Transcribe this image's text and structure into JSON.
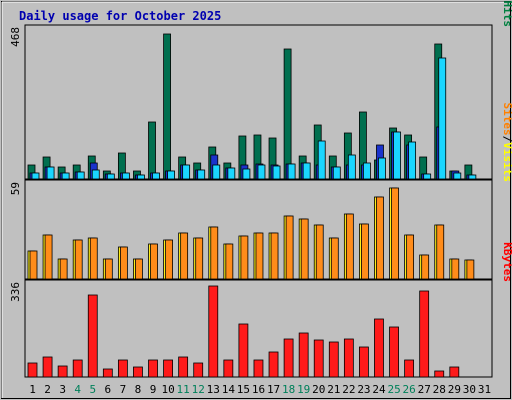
{
  "chart_data": {
    "type": "bar",
    "title": "Daily usage for October 2025",
    "categories": [
      "1",
      "2",
      "3",
      "4",
      "5",
      "6",
      "7",
      "8",
      "9",
      "10",
      "11",
      "12",
      "13",
      "14",
      "15",
      "16",
      "17",
      "18",
      "19",
      "20",
      "21",
      "22",
      "23",
      "24",
      "25",
      "26",
      "27",
      "28",
      "29",
      "30",
      "31"
    ],
    "weekend_days": [
      "4",
      "5",
      "11",
      "12",
      "18",
      "19",
      "25",
      "26"
    ],
    "panels": [
      {
        "id": "hits",
        "max_label": "468",
        "ymax": 468,
        "legend": [
          {
            "text": "Pages",
            "color": "#00ffff"
          },
          {
            "text": "/",
            "color": "#000000"
          },
          {
            "text": "Files",
            "color": "#0000ff"
          },
          {
            "text": "/",
            "color": "#000000"
          },
          {
            "text": "Hits",
            "color": "#008040"
          }
        ],
        "series": [
          {
            "name": "Hits",
            "color": "#006f4f",
            "values": [
              45,
              68,
              37,
              45,
              74,
              26,
              83,
              26,
              179,
              460,
              68,
              50,
              102,
              50,
              137,
              139,
              130,
              412,
              74,
              170,
              74,
              147,
              212,
              59,
              160,
              139,
              68,
              427,
              26,
              43,
              0
            ]
          },
          {
            "name": "Files",
            "color": "#1a33cc",
            "values": [
              20,
              39,
              20,
              22,
              51,
              16,
              20,
              14,
              20,
              26,
              43,
              29,
              77,
              35,
              43,
              47,
              45,
              49,
              51,
              43,
              39,
              45,
              45,
              107,
              150,
              107,
              16,
              165,
              24,
              14,
              0
            ]
          },
          {
            "name": "Pages",
            "color": "#1ad6ff",
            "values": [
              20,
              39,
              20,
              22,
              28,
              16,
              20,
              14,
              20,
              26,
              43,
              29,
              45,
              35,
              33,
              43,
              41,
              49,
              51,
              119,
              39,
              75,
              51,
              65,
              150,
              117,
              16,
              384,
              20,
              14,
              0
            ]
          }
        ]
      },
      {
        "id": "visits",
        "max_label": "59",
        "ymax": 59,
        "legend": [
          {
            "text": "Sites",
            "color": "#ff8000"
          },
          {
            "text": "/",
            "color": "#000000"
          },
          {
            "text": "Visits",
            "color": "#ffff00"
          }
        ],
        "series": [
          {
            "name": "Visits",
            "color": "#ffef1a",
            "values": [
              18,
              28,
              13,
              25,
              26,
              13,
              20,
              13,
              22,
              25,
              29,
              26,
              33,
              22,
              27,
              29,
              29,
              40,
              38,
              34,
              26,
              41,
              35,
              52,
              58,
              28,
              15,
              34,
              13,
              12,
              0
            ]
          },
          {
            "name": "Sites",
            "color": "#ff8c1a",
            "values": [
              18,
              28,
              13,
              25,
              26,
              13,
              20,
              13,
              22,
              25,
              29,
              26,
              33,
              22,
              27,
              29,
              29,
              40,
              38,
              34,
              26,
              41,
              35,
              52,
              58,
              28,
              15,
              34,
              13,
              12,
              0
            ]
          }
        ]
      },
      {
        "id": "kbytes",
        "max_label": "336",
        "ymax": 336,
        "legend": [
          {
            "text": "KBytes",
            "color": "#ff0000"
          }
        ],
        "series": [
          {
            "name": "KBytes",
            "color": "#ff1a1a",
            "values": [
              52,
              73,
              42,
              62,
              304,
              31,
              62,
              36,
              62,
              62,
              73,
              52,
              336,
              62,
              194,
              62,
              94,
              139,
              163,
              136,
              129,
              139,
              112,
              215,
              185,
              62,
              318,
              23,
              36,
              0,
              0
            ]
          }
        ]
      }
    ]
  }
}
